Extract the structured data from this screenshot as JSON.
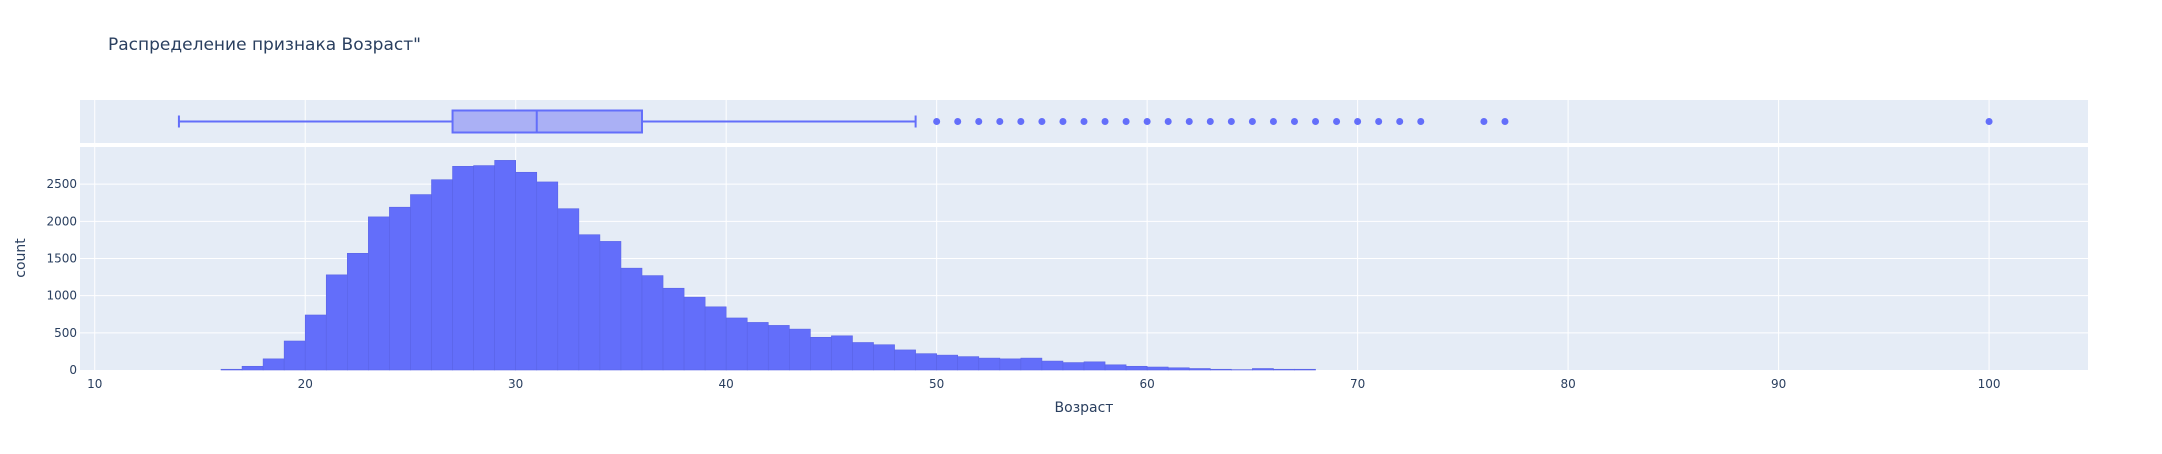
{
  "chart_data": {
    "type": "histogram",
    "title": "Распределение признака Возраст\"",
    "xlabel": "Возраст",
    "ylabel": "count",
    "xlim": [
      9.3,
      104.7
    ],
    "ylim": [
      0,
      3000
    ],
    "xticks": [
      10,
      20,
      30,
      40,
      50,
      60,
      70,
      80,
      90,
      100
    ],
    "yticks": [
      0,
      500,
      1000,
      1500,
      2000,
      2500
    ],
    "grid": true,
    "bin_width": 1,
    "bins_x": [
      16,
      17,
      18,
      19,
      20,
      21,
      22,
      23,
      24,
      25,
      26,
      27,
      28,
      29,
      30,
      31,
      32,
      33,
      34,
      35,
      36,
      37,
      38,
      39,
      40,
      41,
      42,
      43,
      44,
      45,
      46,
      47,
      48,
      49,
      50,
      51,
      52,
      53,
      54,
      55,
      56,
      57,
      58,
      59,
      60,
      61,
      62,
      63,
      64,
      65,
      66,
      67
    ],
    "counts": [
      10,
      50,
      150,
      390,
      740,
      1280,
      1570,
      2060,
      2190,
      2360,
      2560,
      2740,
      2750,
      2820,
      2660,
      2530,
      2170,
      1820,
      1730,
      1370,
      1270,
      1100,
      980,
      850,
      700,
      640,
      600,
      550,
      440,
      460,
      370,
      340,
      270,
      220,
      200,
      180,
      160,
      150,
      160,
      120,
      100,
      110,
      70,
      50,
      40,
      30,
      20,
      10,
      5,
      20,
      10,
      10
    ],
    "boxplot": {
      "lower_fence": 14,
      "q1": 27,
      "median": 31,
      "q3": 36,
      "upper_fence": 49,
      "outliers": [
        50,
        51,
        52,
        53,
        54,
        55,
        56,
        57,
        58,
        59,
        60,
        61,
        62,
        63,
        64,
        65,
        66,
        67,
        68,
        69,
        70,
        71,
        72,
        73,
        76,
        77,
        100
      ]
    },
    "colors": {
      "bar_fill": "#636efa",
      "box_fill": "#aab0f5",
      "box_line": "#636efa",
      "plot_bg": "#e5ecf6",
      "grid": "#ffffff",
      "text": "#2a3f5f"
    }
  }
}
